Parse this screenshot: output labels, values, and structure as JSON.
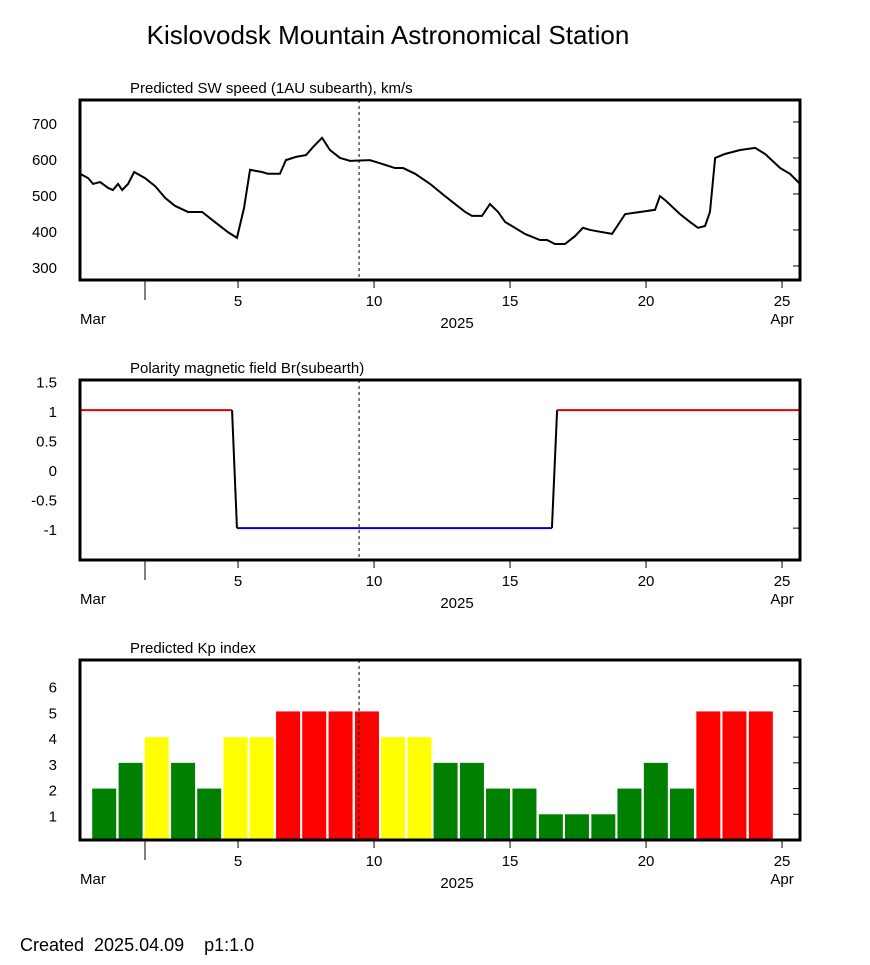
{
  "title": "Kislovodsk Mountain Astronomical Station",
  "footer": "Created  2025.04.09    p1:1.0",
  "chart_data": [
    {
      "type": "line",
      "title": "Predicted SW speed (1AU subearth), km/s",
      "color": "#000000",
      "x": [
        -0.81,
        -0.51,
        -0.33,
        -0.07,
        0.22,
        0.4,
        0.59,
        0.74,
        0.96,
        1.18,
        1.58,
        1.95,
        2.32,
        2.68,
        3.16,
        3.68,
        4.15,
        4.63,
        4.96,
        5.22,
        5.44,
        5.88,
        6.1,
        6.54,
        6.76,
        7.13,
        7.5,
        7.79,
        8.09,
        8.38,
        8.75,
        9.12,
        9.85,
        10.4,
        10.77,
        11.07,
        11.51,
        12.06,
        12.61,
        12.98,
        13.35,
        13.6,
        13.97,
        14.26,
        14.56,
        14.82,
        15.18,
        15.55,
        16.1,
        16.36,
        16.65,
        17.02,
        17.39,
        17.68,
        17.94,
        18.75,
        19.23,
        19.78,
        20.33,
        20.51,
        20.7,
        21.25,
        21.62,
        21.91,
        22.17,
        22.35,
        22.54,
        22.9,
        23.46,
        24.01,
        24.38,
        24.93,
        25.29,
        25.66
      ],
      "values": [
        556,
        544,
        528,
        533,
        517,
        511,
        528,
        511,
        528,
        561,
        544,
        522,
        489,
        467,
        450,
        450,
        422,
        394,
        378,
        461,
        567,
        561,
        556,
        556,
        594,
        603,
        608,
        633,
        656,
        622,
        600,
        592,
        594,
        581,
        572,
        572,
        556,
        528,
        494,
        472,
        450,
        439,
        439,
        472,
        450,
        422,
        406,
        389,
        372,
        372,
        361,
        361,
        383,
        406,
        400,
        389,
        444,
        450,
        456,
        494,
        483,
        444,
        422,
        406,
        411,
        450,
        600,
        611,
        622,
        628,
        611,
        572,
        556,
        528
      ],
      "xlim": [
        -0.81,
        25.66
      ],
      "xticks": [
        5,
        10,
        15,
        20,
        25
      ],
      "ylim": [
        261,
        761
      ],
      "yticks": [
        300,
        400,
        500,
        600,
        700
      ],
      "x_label": "2025",
      "month_labels": [
        "Mar",
        "Apr"
      ],
      "marker_x": 9.45
    },
    {
      "type": "line",
      "title": "Polarity magnetic field  Br(subearth)",
      "x": [
        -0.81,
        4.78,
        4.96,
        16.54,
        16.73,
        25.66
      ],
      "values": [
        1,
        1,
        -1,
        -1,
        1,
        1
      ],
      "segment_colors": [
        "#e00000",
        "#000000",
        "#0000cc",
        "#000000",
        "#e00000"
      ],
      "xlim": [
        -0.81,
        25.66
      ],
      "xticks": [
        5,
        10,
        15,
        20,
        25
      ],
      "ylim": [
        -1.54,
        1.51
      ],
      "yticks": [
        1.5,
        1,
        0.5,
        0,
        -0.5,
        -1
      ],
      "x_label": "2025",
      "month_labels": [
        "Mar",
        "Apr"
      ],
      "marker_x": 9.45
    },
    {
      "type": "bar",
      "title": "Predicted Kp index",
      "x": [
        0.08,
        1.05,
        2.01,
        2.98,
        3.94,
        4.91,
        5.87,
        6.84,
        7.8,
        8.77,
        9.74,
        10.7,
        11.67,
        12.63,
        13.6,
        14.56,
        15.53,
        16.5,
        17.46,
        18.43,
        19.39,
        20.36,
        21.32,
        22.29,
        23.25,
        24.22
      ],
      "values": [
        2,
        3,
        4,
        3,
        2,
        4,
        4,
        5,
        5,
        5,
        5,
        4,
        4,
        3,
        3,
        2,
        2,
        1,
        1,
        1,
        2,
        3,
        2,
        5,
        5,
        5
      ],
      "colors": [
        "#008000",
        "#008000",
        "#ffff00",
        "#008000",
        "#008000",
        "#ffff00",
        "#ffff00",
        "#ff0000",
        "#ff0000",
        "#ff0000",
        "#ff0000",
        "#ffff00",
        "#ffff00",
        "#008000",
        "#008000",
        "#008000",
        "#008000",
        "#008000",
        "#008000",
        "#008000",
        "#008000",
        "#008000",
        "#008000",
        "#ff0000",
        "#ff0000",
        "#ff0000"
      ],
      "xlim": [
        -0.81,
        25.66
      ],
      "xticks": [
        5,
        10,
        15,
        20,
        25
      ],
      "ylim": [
        0,
        7
      ],
      "yticks": [
        1,
        2,
        3,
        4,
        5,
        6
      ],
      "x_label": "2025",
      "month_labels": [
        "Mar",
        "Apr"
      ],
      "marker_x": 9.45
    }
  ]
}
